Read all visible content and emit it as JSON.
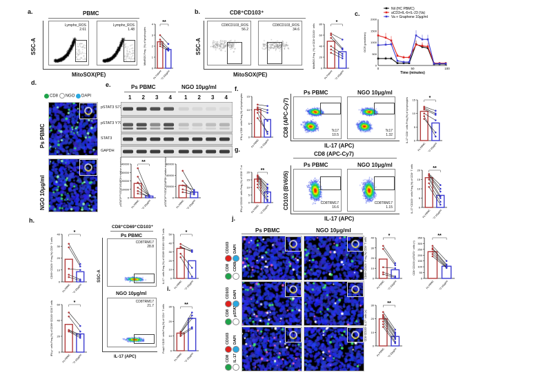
{
  "panels": {
    "a": {
      "label": "a.",
      "title": "PBMC",
      "yaxis": "SSC-A",
      "xaxis": "MitoSOX(PE)",
      "gates": [
        {
          "name": "Lympho_ROS",
          "value": "2.61"
        },
        {
          "name": "Lympho_ROS",
          "value": "1.48"
        }
      ]
    },
    "b": {
      "label": "b.",
      "title": "CD8⁺CD103⁺",
      "yaxis": "SSC-A",
      "xaxis": "MitoSOX(PE)",
      "gates": [
        {
          "name": "CD8CD103_ROS",
          "value": "56.2"
        },
        {
          "name": "CD8CD103_ROS",
          "value": "34.6"
        }
      ]
    },
    "c": {
      "label": "c."
    },
    "d": {
      "label": "d.",
      "legend": [
        "CD8",
        "NGO",
        "DAPI"
      ],
      "rows": [
        "Ps PBMC",
        "NGO 10μg/ml"
      ]
    },
    "e": {
      "label": "e.",
      "group1": "Ps PBMC",
      "group2": "NGO 10μg/ml",
      "lanes": [
        "1",
        "2",
        "3",
        "4",
        "1",
        "2",
        "3",
        "4"
      ],
      "rows": [
        "pSTAT3 S727",
        "pSTAT3 Y705",
        "STAT3",
        "GAPDH"
      ]
    },
    "f": {
      "label": "f.",
      "cond1": "Ps PBMC",
      "cond2": "NGO 10μg/ml",
      "yaxis": "CD8 (APC-Cy7)",
      "xaxis": "IL-17 (APC)",
      "gates": [
        {
          "name": "Tc17",
          "value": "10.5"
        },
        {
          "name": "Tc17",
          "value": "1.32"
        }
      ]
    },
    "g": {
      "label": "g.",
      "header": "CD8 (APC-Cy7)",
      "cond1": "Ps PBMC",
      "cond2": "NGO 10μg/ml",
      "yaxis": "CD103 (BV605)",
      "xaxis": "IL-17 (APC)",
      "gates": [
        {
          "name": "CD8TRM17",
          "value": "16.6"
        },
        {
          "name": "CD8TRM17",
          "value": "1.15"
        }
      ]
    },
    "h": {
      "label": "h.",
      "header": "CD8⁺CD69⁺CD103⁺",
      "cond1": "Ps PBMC",
      "cond2": "NGO 10μg/ml",
      "yaxis": "SSC-A",
      "xaxis": "IL-17 (APC)",
      "gates": [
        {
          "name": "CD8TRM17",
          "value": "28.8"
        },
        {
          "name": "CD8TRM17",
          "value": "21.7"
        }
      ]
    },
    "i": {
      "label": "i."
    },
    "j": {
      "label": "j.",
      "cond1": "Ps PBMC",
      "cond2": "NGO 10μg/ml",
      "rows": [
        [
          "CD8",
          "CD103",
          "CD69",
          "DAPI"
        ],
        [
          "CD8",
          "CD103",
          "pSTAT3",
          "DAPI"
        ],
        [
          "CD8",
          "CD103",
          "IL-17",
          "DAPI"
        ]
      ]
    }
  },
  "colors": {
    "ps": "#b03a3a",
    "ngo": "#3a3ad0",
    "green": "#1fa34a",
    "red": "#e0201c",
    "cyan": "#29a8e0",
    "nil": "#111111"
  },
  "chart_data": [
    {
      "id": "a_bar",
      "type": "bar",
      "categories": [
        "Ps Patient",
        "NGO 10μg/ml"
      ],
      "values": [
        2.4,
        1.7
      ],
      "ylabel": "MitoROS Freq. (%) of lymphocytes",
      "ylim": [
        0,
        4
      ],
      "ticks": [
        "0",
        "1",
        "2",
        "3",
        "4"
      ],
      "significance": "**",
      "pairs": [
        [
          3.0,
          2.2
        ],
        [
          2.6,
          1.8
        ],
        [
          2.4,
          1.6
        ],
        [
          2.2,
          1.7
        ],
        [
          2.0,
          1.6
        ]
      ]
    },
    {
      "id": "b_bar",
      "type": "bar",
      "categories": [
        "Ps Patient",
        "NGO 10μg/ml"
      ],
      "values": [
        49,
        30
      ],
      "ylabel": "MitoROS Freq. (%) of CD8⁺CD103⁺ cells",
      "ylim": [
        0,
        80
      ],
      "ticks": [
        "0",
        "20",
        "40",
        "60",
        "80"
      ],
      "significance": "*",
      "pairs": [
        [
          63,
          52
        ],
        [
          60,
          36
        ],
        [
          55,
          34
        ],
        [
          40,
          26
        ],
        [
          34,
          22
        ],
        [
          28,
          18
        ]
      ]
    },
    {
      "id": "c_ocr",
      "type": "line",
      "ylabel": "OCR (pmol/min)",
      "xlabel": "Time (minutes)",
      "xlim": [
        0,
        100
      ],
      "ylim": [
        0,
        2000
      ],
      "xticks": [
        "0",
        "50",
        "100"
      ],
      "yticks": [
        "0",
        "500",
        "1000",
        "1500",
        "2000"
      ],
      "x": [
        0,
        11,
        19,
        28,
        37,
        45,
        55,
        64,
        72,
        81,
        89,
        98
      ],
      "series": [
        {
          "name": "Nil (HC PBMC)",
          "values": [
            300,
            300,
            300,
            100,
            100,
            100,
            920,
            800,
            750,
            60,
            60,
            60
          ]
        },
        {
          "name": "aCD3+IL-6+IL-23 (Va)",
          "values": [
            1300,
            1200,
            1080,
            420,
            350,
            350,
            900,
            850,
            820,
            100,
            100,
            100
          ]
        },
        {
          "name": "Va + Graphene 10μg/ml",
          "values": [
            880,
            900,
            920,
            200,
            150,
            150,
            1300,
            1130,
            1130,
            80,
            80,
            80
          ]
        }
      ]
    },
    {
      "id": "e_bar1",
      "type": "bar",
      "categories": [
        "Ps PBMC",
        "NGO 10μg/ml"
      ],
      "values": [
        17000,
        2000
      ],
      "ylabel": "pSTAT3ˢ⁷²⁷/STAT3/GAPDH relative expression",
      "ylim": [
        0,
        40000
      ],
      "ticks": [
        "0",
        "10000",
        "20000",
        "30000",
        "40000"
      ],
      "significance": "**",
      "pairs": [
        [
          35000,
          3000
        ],
        [
          25000,
          2000
        ],
        [
          18000,
          1500
        ],
        [
          12000,
          2500
        ],
        [
          8000,
          1000
        ],
        [
          5000,
          2000
        ]
      ]
    },
    {
      "id": "e_bar2",
      "type": "bar",
      "categories": [
        "Ps PBMC",
        "NGO 10μg/ml"
      ],
      "values": [
        22000,
        10000
      ],
      "ylabel": "pSTAT3ʸ⁷⁰⁵/STAT3/GAPDH relative expression",
      "ylim": [
        0,
        60000
      ],
      "ticks": [
        "0",
        "20000",
        "40000",
        "60000"
      ],
      "significance": "",
      "pairs": [
        [
          48000,
          12000
        ],
        [
          30000,
          8000
        ],
        [
          22000,
          14000
        ],
        [
          15000,
          9000
        ],
        [
          10000,
          6000
        ]
      ]
    },
    {
      "id": "f_bar_left",
      "type": "bar",
      "categories": [
        "Ps PBMC",
        "NGO 10μg/ml"
      ],
      "values": [
        10.2,
        6.5
      ],
      "ylabel": "IFN-γ⁺CD8⁺ cells Freq.(%) of lymphocytes",
      "ylim": [
        0,
        15
      ],
      "ticks": [
        "0",
        "5",
        "10",
        "15"
      ],
      "significance": "",
      "pairs": [
        [
          12,
          11.5
        ],
        [
          11,
          10
        ],
        [
          10.5,
          9
        ],
        [
          10,
          6
        ],
        [
          7,
          2
        ],
        [
          9,
          1.2
        ]
      ]
    },
    {
      "id": "f_bar_right",
      "type": "bar",
      "categories": [
        "Ps PBMC",
        "NGO 10μg/ml"
      ],
      "values": [
        10.8,
        6.5
      ],
      "ylabel": "IL-17⁺CD8⁺ cells Freq.(%) of lymphocytes",
      "ylim": [
        0,
        15
      ],
      "ticks": [
        "0",
        "5",
        "10",
        "15"
      ],
      "significance": "*",
      "pairs": [
        [
          12.5,
          11
        ],
        [
          12,
          10
        ],
        [
          11.5,
          9.5
        ],
        [
          10,
          7.5
        ],
        [
          8,
          3
        ],
        [
          9,
          1.5
        ]
      ]
    },
    {
      "id": "g_bar_left",
      "type": "bar",
      "categories": [
        "Ps PBMC",
        "NGO 10μg/ml"
      ],
      "values": [
        15.5,
        7
      ],
      "ylabel": "IFN-γ⁺CD103⁺ cells Freq.(%) of CD8⁺ T cells",
      "ylim": [
        0,
        20
      ],
      "ticks": [
        "0",
        "5",
        "10",
        "15",
        "20"
      ],
      "significance": "**",
      "pairs": [
        [
          18,
          12
        ],
        [
          17.5,
          10
        ],
        [
          17,
          9
        ],
        [
          16,
          7.5
        ],
        [
          15,
          6
        ],
        [
          14,
          4
        ],
        [
          12,
          2
        ],
        [
          10,
          1
        ]
      ]
    },
    {
      "id": "g_bar_right",
      "type": "bar",
      "categories": [
        "Ps PBMC",
        "NGO 10μg/ml"
      ],
      "values": [
        16,
        6.5
      ],
      "ylabel": "IL-17⁺CD103⁺ cells Freq.(%) of CD8⁺ T cells",
      "ylim": [
        0,
        20
      ],
      "ticks": [
        "0",
        "5",
        "10",
        "15",
        "20"
      ],
      "significance": "**",
      "pairs": [
        [
          18,
          12
        ],
        [
          17.5,
          10
        ],
        [
          17,
          8.5
        ],
        [
          16,
          6
        ],
        [
          15,
          5
        ],
        [
          13,
          3
        ],
        [
          11,
          1.5
        ]
      ]
    },
    {
      "id": "h_bar1",
      "type": "bar",
      "categories": [
        "Ps PBMC",
        "NGO 10μg/ml"
      ],
      "values": [
        19,
        8.5
      ],
      "ylabel": "CD69⁺CD103⁺ Freq.(%) CD8⁺ T cells",
      "ylim": [
        0,
        40
      ],
      "ticks": [
        "0",
        "10",
        "20",
        "30",
        "40"
      ],
      "significance": "*",
      "pairs": [
        [
          32,
          15
        ],
        [
          29,
          13
        ],
        [
          11,
          10
        ],
        [
          6,
          2
        ],
        [
          4,
          1
        ]
      ]
    },
    {
      "id": "h_bar2",
      "type": "bar",
      "categories": [
        "Ps PBMC",
        "NGO 10μg/ml"
      ],
      "values": [
        35,
        23
      ],
      "ylabel": "IFN-γ⁺ cells Freq.(%) of CD69⁺CD103⁺CD8 T cells",
      "ylim": [
        0,
        60
      ],
      "ticks": [
        "0",
        "20",
        "40",
        "60"
      ],
      "significance": "*",
      "pairs": [
        [
          50,
          33
        ],
        [
          45,
          26
        ],
        [
          28,
          22
        ],
        [
          27,
          20
        ],
        [
          26,
          18
        ]
      ]
    },
    {
      "id": "h_bar3",
      "type": "bar",
      "categories": [
        "Ps PBMC",
        "NGO 10μg/ml"
      ],
      "values": [
        34,
        20
      ],
      "ylabel": "IL-17⁺ cells Freq.(%) of CD69⁺CD103⁺CD8 T cells",
      "ylim": [
        0,
        50
      ],
      "ticks": [
        "0",
        "10",
        "20",
        "30",
        "40",
        "50"
      ],
      "significance": "*",
      "pairs": [
        [
          39,
          32
        ],
        [
          36,
          30
        ],
        [
          35,
          31
        ],
        [
          28,
          12
        ],
        [
          24,
          2
        ]
      ]
    },
    {
      "id": "i_bar",
      "type": "bar",
      "categories": [
        "Ps PBMC",
        "NGO 10μg/ml"
      ],
      "values": [
        12,
        22
      ],
      "ylabel": "Foxp3⁺CD25⁺ cells Freq.(%) of CD4⁺ T cells",
      "ylim": [
        0,
        30
      ],
      "ticks": [
        "0",
        "10",
        "20",
        "30"
      ],
      "significance": "**",
      "pairs": [
        [
          13,
          26
        ],
        [
          12,
          24
        ],
        [
          12,
          22
        ],
        [
          11,
          16
        ],
        [
          10,
          15
        ]
      ]
    },
    {
      "id": "j_bar1",
      "type": "bar",
      "categories": [
        "Ps PBMC",
        "NGO 10μg/ml"
      ],
      "values": [
        19,
        8.5
      ],
      "ylabel": "CD69⁺CD103⁺ Freq.(%) CD8⁺ T cells",
      "ylim": [
        0,
        40
      ],
      "ticks": [
        "0",
        "10",
        "20",
        "30",
        "40"
      ],
      "significance": "*",
      "pairs": [
        [
          32,
          15
        ],
        [
          29,
          13
        ],
        [
          11,
          10
        ],
        [
          6,
          2
        ],
        [
          4,
          1
        ]
      ]
    },
    {
      "id": "j_bar2",
      "type": "bar",
      "categories": [
        "Ps PBMC",
        "NGO 10μg/ml"
      ],
      "values": [
        230,
        105
      ],
      "ylabel": "CD8⁺CD103⁺pSTAT3⁺ cells (n)",
      "ylim": [
        0,
        350
      ],
      "ticks": [
        "0",
        "50",
        "100",
        "150",
        "200",
        "250",
        "300",
        "350"
      ],
      "significance": "**",
      "pairs": [
        [
          280,
          150
        ],
        [
          260,
          120
        ],
        [
          250,
          110
        ],
        [
          230,
          100
        ],
        [
          210,
          95
        ],
        [
          190,
          90
        ]
      ]
    },
    {
      "id": "j_bar3",
      "type": "bar",
      "categories": [
        "Ps PBMC",
        "NGO 10μg/ml"
      ],
      "values": [
        20,
        7
      ],
      "ylabel": "CD8⁺CD103⁺IL-17⁺ cells (n)",
      "ylim": [
        0,
        30
      ],
      "ticks": [
        "0",
        "10",
        "20",
        "30"
      ],
      "significance": "**",
      "pairs": [
        [
          25,
          12
        ],
        [
          23,
          10
        ],
        [
          22,
          9
        ],
        [
          21,
          8
        ],
        [
          20,
          6
        ],
        [
          18,
          5
        ],
        [
          16,
          3
        ],
        [
          14,
          2
        ]
      ]
    }
  ]
}
